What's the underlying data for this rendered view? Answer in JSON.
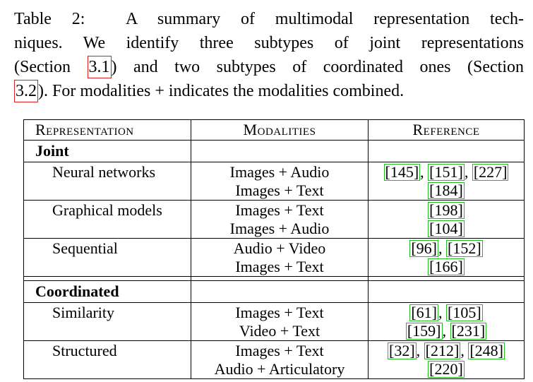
{
  "caption": {
    "line1": "Table 2:  A summary of multimodal representation tech-",
    "line2": "niques. We identify three subtypes of joint representations",
    "line3_before": "(Section ",
    "line3_ref": "3.1",
    "line3_after": ") and two subtypes of coordinated ones (Section",
    "line4_ref": "3.2",
    "line4_after": "). For modalities + indicates the modalities combined."
  },
  "table": {
    "headers": [
      "Representation",
      "Modalities",
      "Reference"
    ],
    "groups": [
      {
        "name": "Joint",
        "rows": [
          {
            "subtype": "Neural networks",
            "modalities": [
              "Images + Audio",
              "Images + Text"
            ],
            "references": [
              [
                "145",
                "151",
                "227"
              ],
              [
                "184"
              ]
            ]
          },
          {
            "subtype": "Graphical models",
            "modalities": [
              "Images + Text",
              "Images + Audio"
            ],
            "references": [
              [
                "198"
              ],
              [
                "104"
              ]
            ]
          },
          {
            "subtype": "Sequential",
            "modalities": [
              "Audio + Video",
              "Images + Text"
            ],
            "references": [
              [
                "96",
                "152"
              ],
              [
                "166"
              ]
            ]
          }
        ]
      },
      {
        "name": "Coordinated",
        "rows": [
          {
            "subtype": "Similarity",
            "modalities": [
              "Images + Text",
              "Video + Text"
            ],
            "references": [
              [
                "61",
                "105"
              ],
              [
                "159",
                "231"
              ]
            ]
          },
          {
            "subtype": "Structured",
            "modalities": [
              "Images + Text",
              "Audio + Articulatory"
            ],
            "references": [
              [
                "32",
                "212",
                "248"
              ],
              [
                "220"
              ]
            ]
          }
        ]
      }
    ]
  },
  "colors": {
    "section_link_box": "#e02020",
    "citation_link_box": "#22bb22"
  }
}
